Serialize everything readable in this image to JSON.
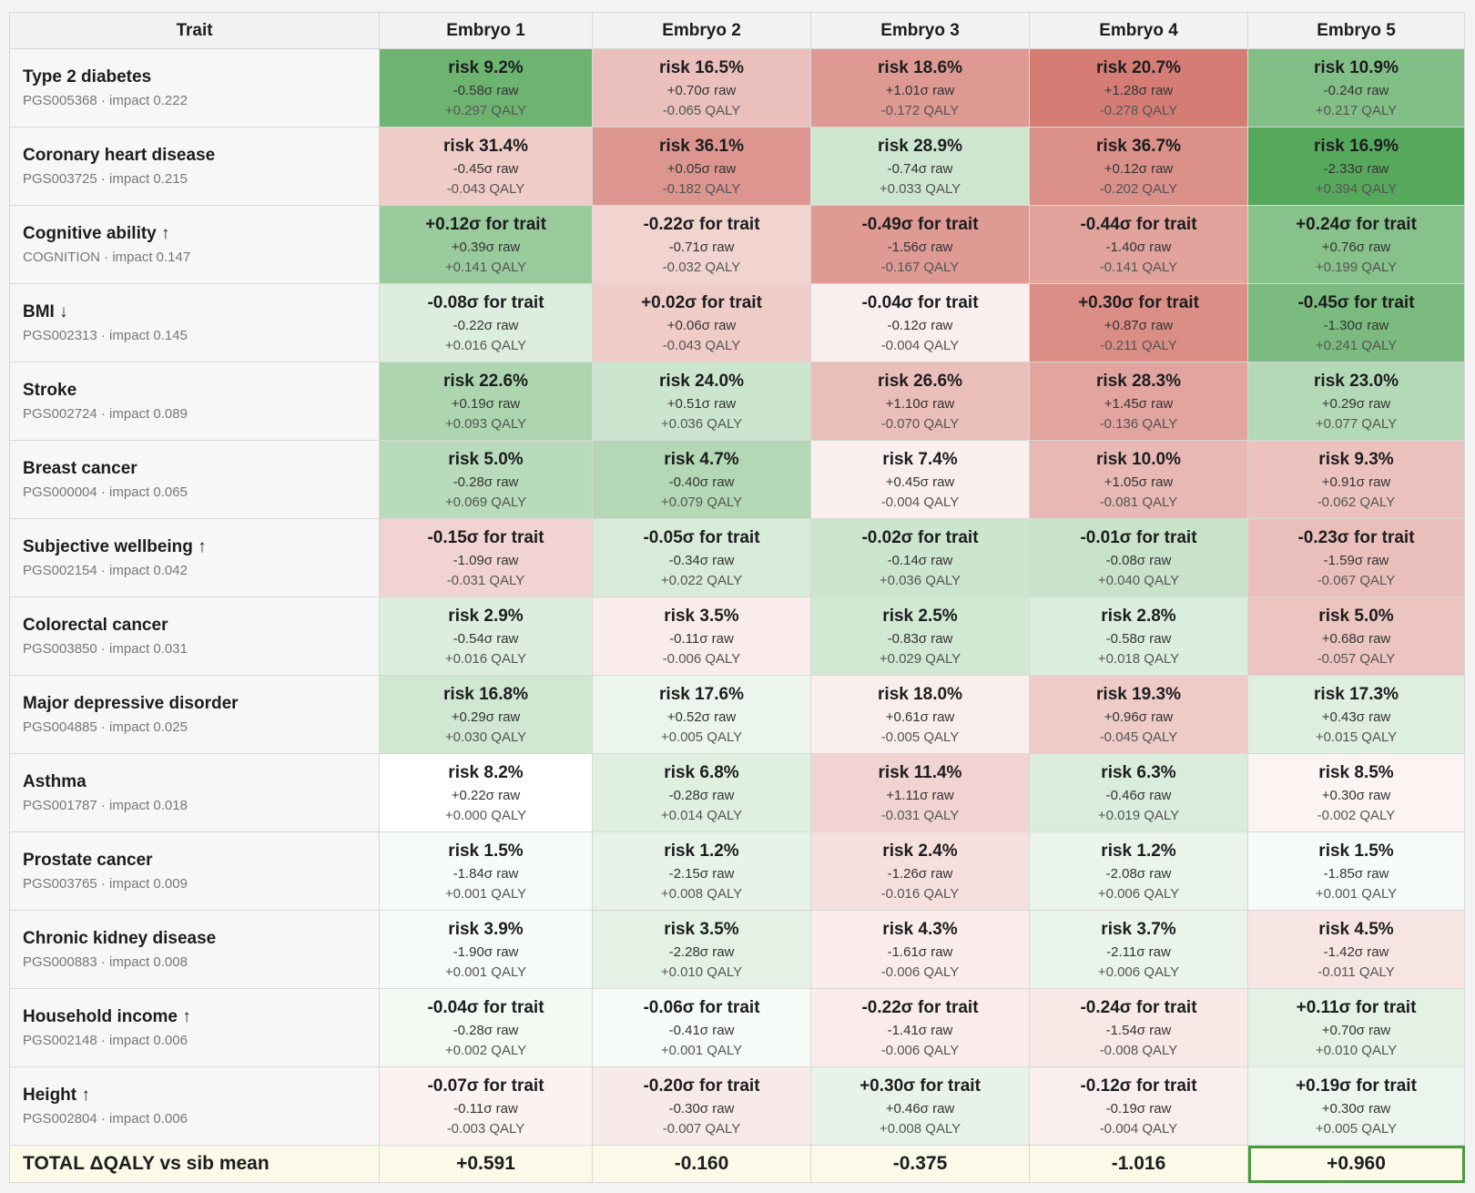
{
  "header": [
    "Trait",
    "Embryo 1",
    "Embryo 2",
    "Embryo 3",
    "Embryo 4",
    "Embryo 5"
  ],
  "rows": [
    {
      "trait": "Type 2 diabetes",
      "sub": "PGS005368 · impact 0.222",
      "cells": [
        [
          "risk 9.2%",
          "-0.58σ raw",
          "+0.297 QALY"
        ],
        [
          "risk 16.5%",
          "+0.70σ raw",
          "-0.065 QALY"
        ],
        [
          "risk 18.6%",
          "+1.01σ raw",
          "-0.172 QALY"
        ],
        [
          "risk 20.7%",
          "+1.28σ raw",
          "-0.278 QALY"
        ],
        [
          "risk 10.9%",
          "-0.24σ raw",
          "+0.217 QALY"
        ]
      ]
    },
    {
      "trait": "Coronary heart disease",
      "sub": "PGS003725 · impact 0.215",
      "cells": [
        [
          "risk 31.4%",
          "-0.45σ raw",
          "-0.043 QALY"
        ],
        [
          "risk 36.1%",
          "+0.05σ raw",
          "-0.182 QALY"
        ],
        [
          "risk 28.9%",
          "-0.74σ raw",
          "+0.033 QALY"
        ],
        [
          "risk 36.7%",
          "+0.12σ raw",
          "-0.202 QALY"
        ],
        [
          "risk 16.9%",
          "-2.33σ raw",
          "+0.394 QALY"
        ]
      ]
    },
    {
      "trait": "Cognitive ability ↑",
      "sub": "COGNITION · impact 0.147",
      "cells": [
        [
          "+0.12σ for trait",
          "+0.39σ raw",
          "+0.141 QALY"
        ],
        [
          "-0.22σ for trait",
          "-0.71σ raw",
          "-0.032 QALY"
        ],
        [
          "-0.49σ for trait",
          "-1.56σ raw",
          "-0.167 QALY"
        ],
        [
          "-0.44σ for trait",
          "-1.40σ raw",
          "-0.141 QALY"
        ],
        [
          "+0.24σ for trait",
          "+0.76σ raw",
          "+0.199 QALY"
        ]
      ]
    },
    {
      "trait": "BMI ↓",
      "sub": "PGS002313 · impact 0.145",
      "cells": [
        [
          "-0.08σ for trait",
          "-0.22σ raw",
          "+0.016 QALY"
        ],
        [
          "+0.02σ for trait",
          "+0.06σ raw",
          "-0.043 QALY"
        ],
        [
          "-0.04σ for trait",
          "-0.12σ raw",
          "-0.004 QALY"
        ],
        [
          "+0.30σ for trait",
          "+0.87σ raw",
          "-0.211 QALY"
        ],
        [
          "-0.45σ for trait",
          "-1.30σ raw",
          "+0.241 QALY"
        ]
      ]
    },
    {
      "trait": "Stroke",
      "sub": "PGS002724 · impact 0.089",
      "cells": [
        [
          "risk 22.6%",
          "+0.19σ raw",
          "+0.093 QALY"
        ],
        [
          "risk 24.0%",
          "+0.51σ raw",
          "+0.036 QALY"
        ],
        [
          "risk 26.6%",
          "+1.10σ raw",
          "-0.070 QALY"
        ],
        [
          "risk 28.3%",
          "+1.45σ raw",
          "-0.136 QALY"
        ],
        [
          "risk 23.0%",
          "+0.29σ raw",
          "+0.077 QALY"
        ]
      ]
    },
    {
      "trait": "Breast cancer",
      "sub": "PGS000004 · impact 0.065",
      "cells": [
        [
          "risk 5.0%",
          "-0.28σ raw",
          "+0.069 QALY"
        ],
        [
          "risk 4.7%",
          "-0.40σ raw",
          "+0.079 QALY"
        ],
        [
          "risk 7.4%",
          "+0.45σ raw",
          "-0.004 QALY"
        ],
        [
          "risk 10.0%",
          "+1.05σ raw",
          "-0.081 QALY"
        ],
        [
          "risk 9.3%",
          "+0.91σ raw",
          "-0.062 QALY"
        ]
      ]
    },
    {
      "trait": "Subjective wellbeing ↑",
      "sub": "PGS002154 · impact 0.042",
      "cells": [
        [
          "-0.15σ for trait",
          "-1.09σ raw",
          "-0.031 QALY"
        ],
        [
          "-0.05σ for trait",
          "-0.34σ raw",
          "+0.022 QALY"
        ],
        [
          "-0.02σ for trait",
          "-0.14σ raw",
          "+0.036 QALY"
        ],
        [
          "-0.01σ for trait",
          "-0.08σ raw",
          "+0.040 QALY"
        ],
        [
          "-0.23σ for trait",
          "-1.59σ raw",
          "-0.067 QALY"
        ]
      ]
    },
    {
      "trait": "Colorectal cancer",
      "sub": "PGS003850 · impact 0.031",
      "cells": [
        [
          "risk 2.9%",
          "-0.54σ raw",
          "+0.016 QALY"
        ],
        [
          "risk 3.5%",
          "-0.11σ raw",
          "-0.006 QALY"
        ],
        [
          "risk 2.5%",
          "-0.83σ raw",
          "+0.029 QALY"
        ],
        [
          "risk 2.8%",
          "-0.58σ raw",
          "+0.018 QALY"
        ],
        [
          "risk 5.0%",
          "+0.68σ raw",
          "-0.057 QALY"
        ]
      ]
    },
    {
      "trait": "Major depressive disorder",
      "sub": "PGS004885 · impact 0.025",
      "cells": [
        [
          "risk 16.8%",
          "+0.29σ raw",
          "+0.030 QALY"
        ],
        [
          "risk 17.6%",
          "+0.52σ raw",
          "+0.005 QALY"
        ],
        [
          "risk 18.0%",
          "+0.61σ raw",
          "-0.005 QALY"
        ],
        [
          "risk 19.3%",
          "+0.96σ raw",
          "-0.045 QALY"
        ],
        [
          "risk 17.3%",
          "+0.43σ raw",
          "+0.015 QALY"
        ]
      ]
    },
    {
      "trait": "Asthma",
      "sub": "PGS001787 · impact 0.018",
      "cells": [
        [
          "risk 8.2%",
          "+0.22σ raw",
          "+0.000 QALY"
        ],
        [
          "risk 6.8%",
          "-0.28σ raw",
          "+0.014 QALY"
        ],
        [
          "risk 11.4%",
          "+1.11σ raw",
          "-0.031 QALY"
        ],
        [
          "risk 6.3%",
          "-0.46σ raw",
          "+0.019 QALY"
        ],
        [
          "risk 8.5%",
          "+0.30σ raw",
          "-0.002 QALY"
        ]
      ]
    },
    {
      "trait": "Prostate cancer",
      "sub": "PGS003765 · impact 0.009",
      "cells": [
        [
          "risk 1.5%",
          "-1.84σ raw",
          "+0.001 QALY"
        ],
        [
          "risk 1.2%",
          "-2.15σ raw",
          "+0.008 QALY"
        ],
        [
          "risk 2.4%",
          "-1.26σ raw",
          "-0.016 QALY"
        ],
        [
          "risk 1.2%",
          "-2.08σ raw",
          "+0.006 QALY"
        ],
        [
          "risk 1.5%",
          "-1.85σ raw",
          "+0.001 QALY"
        ]
      ]
    },
    {
      "trait": "Chronic kidney disease",
      "sub": "PGS000883 · impact 0.008",
      "cells": [
        [
          "risk 3.9%",
          "-1.90σ raw",
          "+0.001 QALY"
        ],
        [
          "risk 3.5%",
          "-2.28σ raw",
          "+0.010 QALY"
        ],
        [
          "risk 4.3%",
          "-1.61σ raw",
          "-0.006 QALY"
        ],
        [
          "risk 3.7%",
          "-2.11σ raw",
          "+0.006 QALY"
        ],
        [
          "risk 4.5%",
          "-1.42σ raw",
          "-0.011 QALY"
        ]
      ]
    },
    {
      "trait": "Household income ↑",
      "sub": "PGS002148 · impact 0.006",
      "cells": [
        [
          "-0.04σ for trait",
          "-0.28σ raw",
          "+0.002 QALY"
        ],
        [
          "-0.06σ for trait",
          "-0.41σ raw",
          "+0.001 QALY"
        ],
        [
          "-0.22σ for trait",
          "-1.41σ raw",
          "-0.006 QALY"
        ],
        [
          "-0.24σ for trait",
          "-1.54σ raw",
          "-0.008 QALY"
        ],
        [
          "+0.11σ for trait",
          "+0.70σ raw",
          "+0.010 QALY"
        ]
      ]
    },
    {
      "trait": "Height ↑",
      "sub": "PGS002804 · impact 0.006",
      "cells": [
        [
          "-0.07σ for trait",
          "-0.11σ raw",
          "-0.003 QALY"
        ],
        [
          "-0.20σ for trait",
          "-0.30σ raw",
          "-0.007 QALY"
        ],
        [
          "+0.30σ for trait",
          "+0.46σ raw",
          "+0.008 QALY"
        ],
        [
          "-0.12σ for trait",
          "-0.19σ raw",
          "-0.004 QALY"
        ],
        [
          "+0.19σ for trait",
          "+0.30σ raw",
          "+0.005 QALY"
        ]
      ]
    }
  ],
  "total": {
    "label": "TOTAL ΔQALY vs sib mean",
    "values": [
      "+0.591",
      "-0.160",
      "-0.375",
      "-1.016",
      "+0.960"
    ]
  }
}
